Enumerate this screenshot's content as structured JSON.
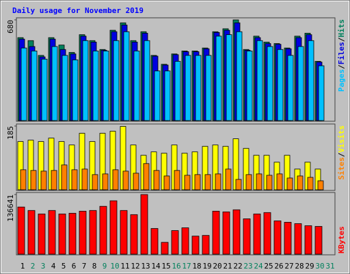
{
  "chart_data": [
    {
      "type": "bar",
      "title": "Daily usage for November 2019",
      "ylim": [
        0,
        680
      ],
      "yticks": [
        680
      ],
      "legend_separator": "/",
      "series": [
        {
          "name": "Hits",
          "color": "#00805c",
          "values": [
            560,
            540,
            440,
            560,
            510,
            460,
            580,
            540,
            480,
            610,
            660,
            540,
            600,
            440,
            380,
            450,
            470,
            470,
            490,
            600,
            620,
            680,
            480,
            570,
            530,
            520,
            490,
            570,
            590,
            400,
            null
          ]
        },
        {
          "name": "Files",
          "color": "#0000e0",
          "values": [
            550,
            500,
            430,
            550,
            480,
            450,
            570,
            530,
            475,
            600,
            645,
            530,
            590,
            435,
            375,
            445,
            465,
            465,
            485,
            595,
            610,
            660,
            475,
            560,
            520,
            515,
            485,
            560,
            580,
            395,
            null
          ]
        },
        {
          "name": "Pages",
          "color": "#00c0ff",
          "values": [
            490,
            470,
            415,
            500,
            440,
            410,
            540,
            470,
            470,
            540,
            600,
            470,
            540,
            335,
            335,
            400,
            440,
            440,
            440,
            570,
            580,
            600,
            470,
            540,
            500,
            480,
            440,
            500,
            540,
            370,
            null
          ]
        }
      ]
    },
    {
      "type": "bar",
      "ylim": [
        0,
        185
      ],
      "yticks": [
        185
      ],
      "legend_separator": "/",
      "series": [
        {
          "name": "Visits",
          "color": "#ffff00",
          "values": [
            140,
            144,
            140,
            150,
            140,
            130,
            164,
            140,
            164,
            170,
            184,
            130,
            100,
            110,
            106,
            130,
            106,
            110,
            126,
            130,
            126,
            148,
            120,
            100,
            100,
            80,
            100,
            60,
            80,
            60,
            null
          ]
        },
        {
          "name": "Sites",
          "color": "#ff8000",
          "values": [
            58,
            56,
            54,
            56,
            72,
            58,
            60,
            44,
            46,
            58,
            54,
            48,
            76,
            56,
            40,
            56,
            42,
            44,
            44,
            46,
            60,
            30,
            44,
            46,
            42,
            46,
            34,
            40,
            36,
            26,
            null
          ]
        }
      ]
    },
    {
      "type": "bar",
      "ylim": [
        0,
        136641
      ],
      "yticks": [
        136641
      ],
      "categories": [
        "1",
        "2",
        "3",
        "4",
        "5",
        "6",
        "7",
        "8",
        "9",
        "10",
        "11",
        "12",
        "13",
        "14",
        "15",
        "16",
        "17",
        "18",
        "19",
        "20",
        "21",
        "22",
        "23",
        "24",
        "25",
        "26",
        "27",
        "28",
        "29",
        "30",
        "31"
      ],
      "category_colors": [
        "#000000",
        "#00805c",
        "#00805c",
        "#000000",
        "#000000",
        "#000000",
        "#000000",
        "#000000",
        "#00805c",
        "#00805c",
        "#000000",
        "#000000",
        "#000000",
        "#000000",
        "#000000",
        "#00805c",
        "#00805c",
        "#000000",
        "#000000",
        "#000000",
        "#000000",
        "#000000",
        "#00805c",
        "#00805c",
        "#000000",
        "#000000",
        "#000000",
        "#000000",
        "#000000",
        "#00805c",
        "#00805c"
      ],
      "series": [
        {
          "name": "KBytes",
          "color": "#ff0000",
          "values": [
            108052,
            100107,
            92162,
            100107,
            92162,
            93751,
            98518,
            100107,
            109641,
            122353,
            100107,
            90573,
            136641,
            58793,
            27013,
            54026,
            60382,
            41314,
            42903,
            98518,
            96929,
            101696,
            81039,
            92162,
            95340,
            76272,
            73094,
            69916,
            65149,
            63560,
            null
          ]
        }
      ]
    }
  ]
}
